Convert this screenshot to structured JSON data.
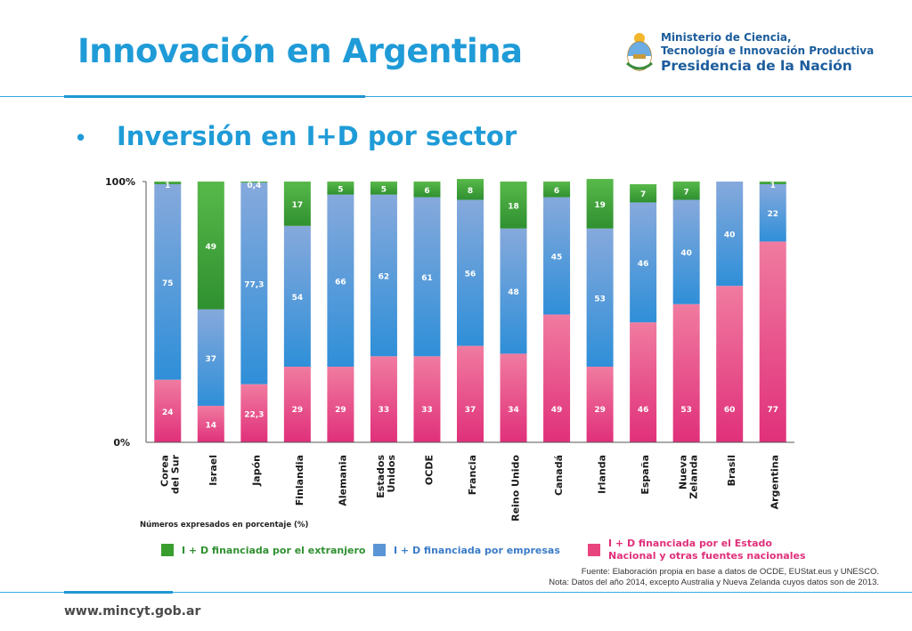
{
  "header": {
    "title": "Innovación en Argentina",
    "logo": {
      "line1": "Ministerio de Ciencia,",
      "line2": "Tecnología e Innovación Productiva",
      "line3": "Presidencia de la Nación",
      "icon": "argentina-coat-of-arms-icon"
    }
  },
  "bullet": "•",
  "subtitle": "Inversión en I+D por sector",
  "colors": {
    "accent": "#1f9bd7",
    "extranjero": "#3a9e2e",
    "empresas": "#5b95d6",
    "estado": "#e8457e"
  },
  "units_note": "Números expresados en porcentaje (%)",
  "legend": {
    "extranjero": "I + D financiada por el extranjero",
    "empresas": "I + D financiada por empresas",
    "estado_line1": "I + D financiada por el Estado",
    "estado_line2": "Nacional y otras fuentes nacionales"
  },
  "source": {
    "line1": "Fuente: Elaboración propia en base a datos de OCDE, EUStat.eus y UNESCO.",
    "line2": "Nota: Datos del año 2014, excepto Australia y Nueva Zelanda cuyos datos son de 2013."
  },
  "footer": {
    "url": "www.mincyt.gob.ar"
  },
  "chart_data": {
    "type": "bar",
    "stacked": true,
    "percent": true,
    "title": "",
    "xlabel": "",
    "ylabel": "",
    "ylim": [
      0,
      100
    ],
    "y_tick_labels": [
      "0%",
      "100%"
    ],
    "grid": false,
    "legend_position": "bottom",
    "categories": [
      "Corea del Sur",
      "Israel",
      "Japón",
      "Finlandia",
      "Alemania",
      "Estados Unidos",
      "OCDE",
      "Francia",
      "Reino Unido",
      "Canadá",
      "Irlanda",
      "España",
      "Nueva Zelanda",
      "Brasil",
      "Argentina"
    ],
    "category_lines": [
      [
        "Corea",
        "del Sur"
      ],
      [
        "Israel"
      ],
      [
        "Japón"
      ],
      [
        "Finlandia"
      ],
      [
        "Alemania"
      ],
      [
        "Estados",
        "Unidos"
      ],
      [
        "OCDE"
      ],
      [
        "Francia"
      ],
      [
        "Reino Unido"
      ],
      [
        "Canadá"
      ],
      [
        "Irlanda"
      ],
      [
        "España"
      ],
      [
        "Nueva",
        "Zelanda"
      ],
      [
        "Brasil"
      ],
      [
        "Argentina"
      ]
    ],
    "series": [
      {
        "key": "estado",
        "values": [
          24,
          14,
          22.3,
          29,
          29,
          33,
          33,
          37,
          34,
          49,
          29,
          46,
          53,
          60,
          77
        ],
        "labels": [
          "24",
          "14",
          "22,3",
          "29",
          "29",
          "33",
          "33",
          "37",
          "34",
          "49",
          "29",
          "46",
          "53",
          "60",
          "77"
        ]
      },
      {
        "key": "empresas",
        "values": [
          75,
          37,
          77.3,
          54,
          66,
          62,
          61,
          56,
          48,
          45,
          53,
          46,
          40,
          40,
          22
        ],
        "labels": [
          "75",
          "37",
          "77,3",
          "54",
          "66",
          "62",
          "61",
          "56",
          "48",
          "45",
          "53",
          "46",
          "40",
          "40",
          "22"
        ]
      },
      {
        "key": "extranjero",
        "values": [
          1,
          49,
          0.4,
          17,
          5,
          5,
          6,
          8,
          18,
          6,
          19,
          7,
          7,
          0,
          1
        ],
        "labels": [
          "1",
          "49",
          "0,4",
          "17",
          "5",
          "5",
          "6",
          "8",
          "18",
          "6",
          "19",
          "7",
          "7",
          "",
          "1"
        ]
      }
    ]
  }
}
